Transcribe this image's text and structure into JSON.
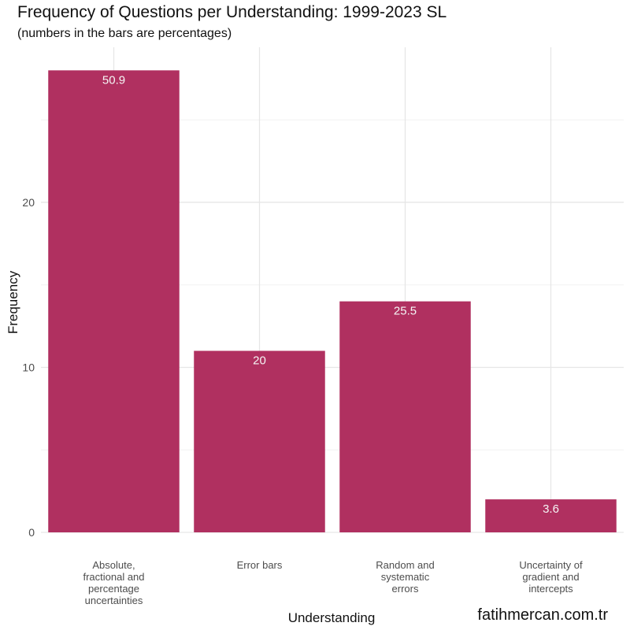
{
  "chart_data": {
    "type": "bar",
    "title": "Frequency of Questions per Understanding: 1999-2023 SL",
    "subtitle": "(numbers in the bars are percentages)",
    "xlabel": "Understanding",
    "ylabel": "Frequency",
    "categories": [
      "Absolute, fractional and percentage uncertainties",
      "Error bars",
      "Random and systematic errors",
      "Uncertainty of gradient and intercepts"
    ],
    "category_label_lines": [
      [
        "Absolute,",
        "fractional and",
        "percentage",
        "uncertainties"
      ],
      [
        "Error bars"
      ],
      [
        "Random and",
        "systematic",
        "errors"
      ],
      [
        "Uncertainty of",
        "gradient and",
        "intercepts"
      ]
    ],
    "values": [
      28,
      11,
      14,
      2
    ],
    "bar_labels": [
      "50.9",
      "20",
      "25.5",
      "3.6"
    ],
    "ylim": [
      0,
      29.4
    ],
    "yticks": [
      0,
      10,
      20
    ],
    "grid": true,
    "legend": "none",
    "bar_color": "#B03060",
    "label_color": "#F5F5F5"
  },
  "watermark": "fatihmercan.com.tr"
}
